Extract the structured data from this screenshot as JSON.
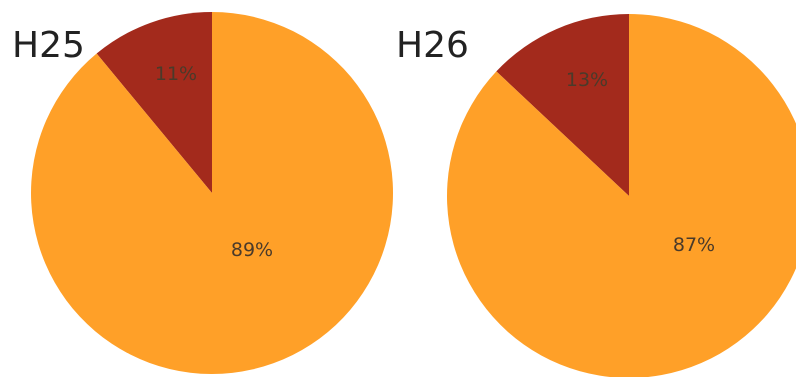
{
  "colors": {
    "major": "#FFA028",
    "minor": "#A32A1C",
    "background": "#FFFFFF"
  },
  "chart_data": [
    {
      "type": "pie",
      "title": "H25",
      "categories": [
        "",
        ""
      ],
      "values": [
        11,
        89
      ],
      "labels": [
        "11%",
        "89%"
      ],
      "colors": [
        "#A32A1C",
        "#FFA028"
      ],
      "start_angle_deg": 0,
      "direction": "counterclockwise"
    },
    {
      "type": "pie",
      "title": "H26",
      "categories": [
        "",
        ""
      ],
      "values": [
        13,
        87
      ],
      "labels": [
        "13%",
        "87%"
      ],
      "colors": [
        "#A32A1C",
        "#FFA028"
      ],
      "start_angle_deg": 0,
      "direction": "counterclockwise"
    }
  ]
}
